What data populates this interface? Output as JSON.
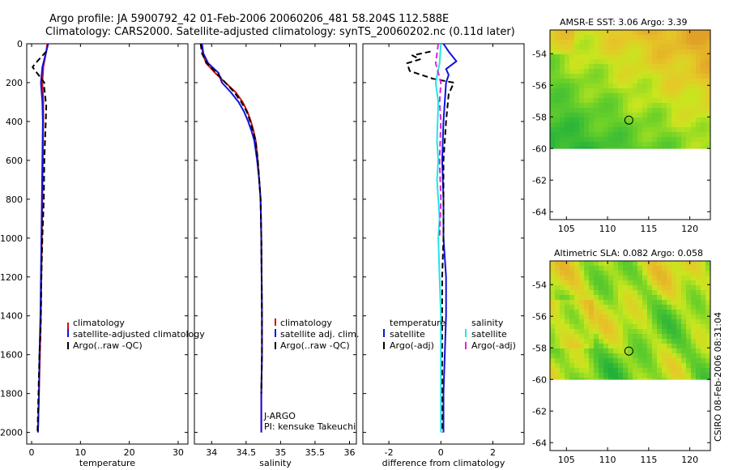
{
  "header": {
    "line1": "Argo profile: JA 5900792_42 01-Feb-2006 20060206_481 58.204S 112.588E",
    "line2": "Climatology: CARS2000. Satellite-adjusted climatology: synTS_20060202.nc (0.11d later)"
  },
  "colors": {
    "climatology": "#cc1111",
    "satellite": "#1111dd",
    "argo": "#000000",
    "satellite_sal": "#22e6e6",
    "argo_sal": "#dd22dd"
  },
  "chart_data": [
    {
      "type": "line",
      "id": "temperature",
      "xlabel": "temperature",
      "xlim": [
        -1,
        32
      ],
      "ylim": [
        2060,
        0
      ],
      "xticks": [
        0,
        10,
        20,
        30
      ],
      "yticks": [
        0,
        200,
        400,
        600,
        800,
        1000,
        1200,
        1400,
        1600,
        1800,
        2000
      ],
      "series": [
        {
          "name": "climatology",
          "color_key": "climatology",
          "dash": false,
          "x": [
            3.2,
            3.0,
            2.4,
            2.2,
            2.4,
            2.4,
            2.3,
            2.2,
            2.1,
            2.0,
            1.9,
            1.8,
            1.7,
            1.5,
            1.4,
            1.3
          ],
          "y": [
            0,
            40,
            120,
            200,
            300,
            400,
            600,
            800,
            1000,
            1200,
            1400,
            1500,
            1600,
            1800,
            1900,
            2000
          ]
        },
        {
          "name": "satellite-adjusted climatology",
          "color_key": "satellite",
          "dash": false,
          "x": [
            3.4,
            3.0,
            2.2,
            1.9,
            2.2,
            2.3,
            2.2,
            2.1,
            2.0,
            1.9,
            1.8,
            1.7,
            1.6,
            1.5,
            1.4,
            1.3
          ],
          "y": [
            0,
            40,
            120,
            200,
            300,
            400,
            600,
            800,
            1000,
            1200,
            1400,
            1500,
            1600,
            1800,
            1900,
            2000
          ]
        },
        {
          "name": "Argo(..raw -QC)",
          "color_key": "argo",
          "dash": true,
          "x": [
            3.0,
            0.8,
            0.2,
            0.5,
            1.4,
            2.6,
            2.6,
            3.0,
            2.9,
            2.6,
            2.5,
            2.2,
            2.0,
            1.9,
            1.8,
            1.6,
            1.5,
            1.4,
            1.3,
            1.2
          ],
          "y": [
            40,
            100,
            120,
            130,
            160,
            200,
            230,
            320,
            400,
            600,
            800,
            1000,
            1200,
            1400,
            1500,
            1600,
            1700,
            1800,
            1900,
            2000
          ]
        }
      ],
      "legend": [
        "climatology",
        "satellite-adjusted climatology",
        "Argo(..raw -QC)"
      ]
    },
    {
      "type": "line",
      "id": "salinity",
      "xlabel": "salinity",
      "xlim": [
        33.75,
        36.1
      ],
      "ylim": [
        2060,
        0
      ],
      "xticks": [
        34,
        34.5,
        35,
        35.5,
        36
      ],
      "series": [
        {
          "name": "climatology",
          "color_key": "climatology",
          "dash": false,
          "x": [
            33.86,
            33.87,
            33.92,
            34.05,
            34.2,
            34.35,
            34.45,
            34.52,
            34.57,
            34.61,
            34.64,
            34.67,
            34.69,
            34.71,
            34.72,
            34.725,
            34.73,
            34.73,
            34.72,
            34.72
          ],
          "y": [
            0,
            50,
            100,
            150,
            200,
            250,
            300,
            350,
            400,
            450,
            500,
            600,
            700,
            800,
            1000,
            1200,
            1400,
            1600,
            1800,
            2000
          ]
        },
        {
          "name": "satellite adj. clim.",
          "color_key": "satellite",
          "dash": false,
          "x": [
            33.86,
            33.88,
            33.95,
            34.1,
            34.15,
            34.28,
            34.39,
            34.47,
            34.53,
            34.58,
            34.62,
            34.66,
            34.69,
            34.71,
            34.72,
            34.725,
            34.73,
            34.73,
            34.72,
            34.72
          ],
          "y": [
            0,
            50,
            100,
            150,
            200,
            250,
            300,
            350,
            400,
            450,
            500,
            600,
            700,
            800,
            1000,
            1200,
            1400,
            1600,
            1800,
            2000
          ]
        },
        {
          "name": "Argo(..raw -QC)",
          "color_key": "argo",
          "dash": true,
          "x": [
            33.84,
            33.86,
            33.93,
            34.07,
            34.2,
            34.33,
            34.43,
            34.51,
            34.56,
            34.6,
            34.64,
            34.67,
            34.69,
            34.71,
            34.72,
            34.725,
            34.73,
            34.73,
            34.72
          ],
          "y": [
            0,
            50,
            100,
            150,
            200,
            250,
            300,
            350,
            400,
            450,
            500,
            600,
            700,
            800,
            1000,
            1200,
            1400,
            1600,
            1800
          ]
        }
      ],
      "legend": [
        "climatology",
        "satellite adj. clim.",
        "Argo(..raw -QC)"
      ],
      "annotations": [
        "J-ARGO",
        "PI: kensuke Takeuchi"
      ]
    },
    {
      "type": "line",
      "id": "difference",
      "xlabel": "difference from climatology",
      "xlim": [
        -3,
        3.2
      ],
      "ylim": [
        2060,
        0
      ],
      "xticks": [
        -2,
        0,
        2
      ],
      "series": [
        {
          "name": "temperature satellite",
          "color_key": "satellite",
          "dash": false,
          "x": [
            0.1,
            0.3,
            0.6,
            0.2,
            0.3,
            0.2,
            0.1,
            0.05,
            0.1,
            0.1,
            0.15,
            0.2,
            0.2,
            0.15,
            0.1,
            0.1
          ],
          "y": [
            0,
            40,
            90,
            130,
            160,
            200,
            400,
            600,
            800,
            1000,
            1100,
            1200,
            1400,
            1600,
            1800,
            2000
          ]
        },
        {
          "name": "temperature Argo(-adj)",
          "color_key": "argo",
          "dash": true,
          "x": [
            -0.4,
            -1.1,
            -0.8,
            -1.3,
            -1.2,
            -0.3,
            0.5,
            0.3,
            0.2,
            0.1,
            0.1,
            0.1,
            0.05,
            0.05,
            0.05,
            0.05
          ],
          "y": [
            40,
            60,
            80,
            100,
            140,
            180,
            200,
            260,
            400,
            600,
            800,
            1000,
            1200,
            1400,
            1600,
            2000
          ]
        },
        {
          "name": "salinity satellite",
          "color_key": "satellite_sal",
          "dash": false,
          "x": [
            0.0,
            -0.05,
            -0.2,
            -0.1,
            -0.15,
            -0.1,
            -0.15,
            -0.05,
            -0.1,
            -0.05,
            0.0,
            0.0,
            0.0
          ],
          "y": [
            0,
            100,
            200,
            300,
            500,
            600,
            700,
            900,
            1000,
            1200,
            1400,
            1800,
            2000
          ]
        },
        {
          "name": "salinity Argo(-adj)",
          "color_key": "argo_sal",
          "dash": true,
          "x": [
            -0.1,
            -0.2,
            0.0,
            -0.05,
            0.0,
            -0.05,
            0.0,
            -0.05
          ],
          "y": [
            0,
            100,
            200,
            300,
            400,
            600,
            800,
            1000
          ]
        }
      ],
      "legend_headers": [
        "temperature",
        "salinity"
      ],
      "legend_temperature": [
        "satellite",
        "Argo(-adj)"
      ],
      "legend_salinity": [
        "satellite",
        "Argo(-adj)"
      ]
    }
  ],
  "maps": [
    {
      "title": "AMSR-E SST: 3.06 Argo: 3.39",
      "yticks": [
        -54,
        -56,
        -58,
        -60,
        -62,
        -64
      ],
      "xticks": [
        105,
        110,
        115,
        120
      ],
      "lon_range": [
        103,
        122.5
      ],
      "lat_range": [
        -64.5,
        -52.5
      ],
      "data_lat_min": -60,
      "marker": {
        "lon": 112.588,
        "lat": -58.204
      },
      "palette": "sst"
    },
    {
      "title": "Altimetric SLA: 0.082 Argo: 0.058",
      "yticks": [
        -54,
        -56,
        -58,
        -60,
        -62,
        -64
      ],
      "xticks": [
        105,
        110,
        115,
        120
      ],
      "lon_range": [
        103,
        122.5
      ],
      "lat_range": [
        -64.5,
        -52.5
      ],
      "data_lat_min": -60,
      "marker": {
        "lon": 112.588,
        "lat": -58.204
      },
      "palette": "sla"
    }
  ],
  "side_label": "CSIRO 08-Feb-2006 08:31:04"
}
